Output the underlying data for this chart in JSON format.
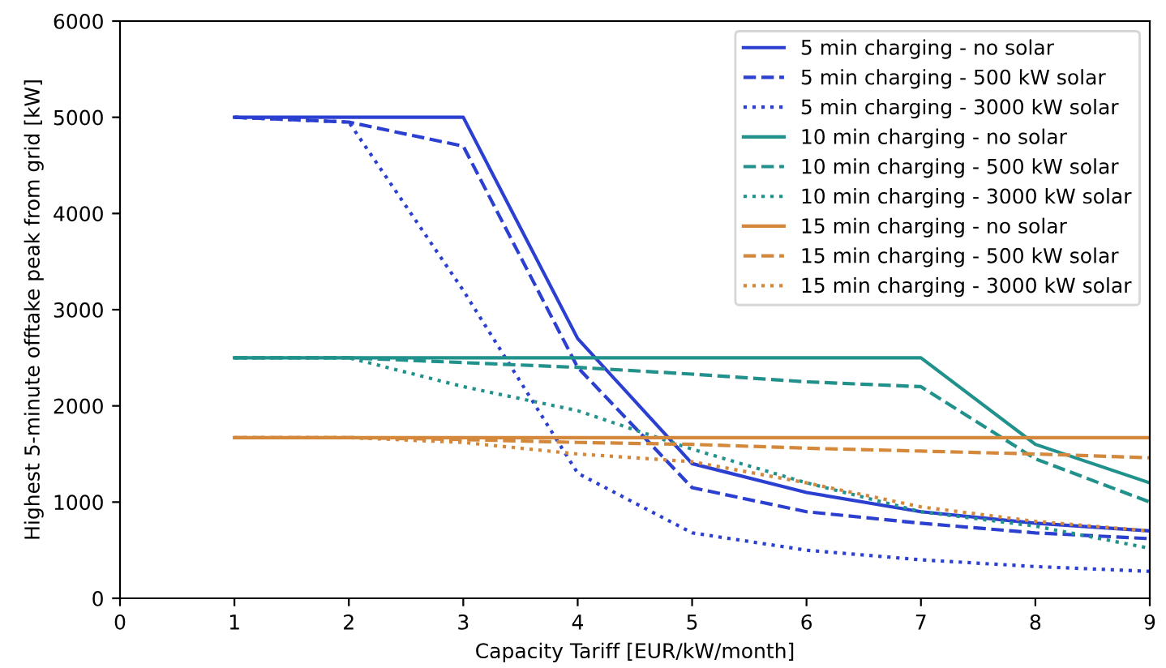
{
  "chart_data": {
    "type": "line",
    "xlabel": "Capacity Tariff [EUR/kW/month]",
    "ylabel": "Highest 5-minute offtake peak from grid [kW]",
    "x": [
      1,
      2,
      3,
      4,
      5,
      6,
      7,
      8,
      9
    ],
    "series": [
      {
        "name": "5 min charging - no solar",
        "color": "#2b3fd0",
        "line_style": "solid",
        "values": [
          5000,
          5000,
          5000,
          2700,
          1400,
          1100,
          900,
          780,
          700
        ]
      },
      {
        "name": "5 min charging - 500 kW solar",
        "color": "#2b3fd0",
        "line_style": "dashed",
        "values": [
          5000,
          4950,
          4700,
          2400,
          1150,
          900,
          780,
          680,
          620
        ]
      },
      {
        "name": "5 min charging - 3000 kW solar",
        "color": "#2b3fd0",
        "line_style": "dotted",
        "values": [
          5000,
          4950,
          3200,
          1300,
          680,
          500,
          400,
          330,
          280
        ]
      },
      {
        "name": "10 min charging - no solar",
        "color": "#21918c",
        "line_style": "solid",
        "values": [
          2500,
          2500,
          2500,
          2500,
          2500,
          2500,
          2500,
          1600,
          1200
        ]
      },
      {
        "name": "10 min charging - 500 kW solar",
        "color": "#21918c",
        "line_style": "dashed",
        "values": [
          2500,
          2500,
          2450,
          2400,
          2330,
          2250,
          2200,
          1450,
          1000
        ]
      },
      {
        "name": "10 min charging - 3000 kW solar",
        "color": "#21918c",
        "line_style": "dotted",
        "values": [
          2500,
          2500,
          2200,
          1950,
          1550,
          1200,
          900,
          750,
          520
        ]
      },
      {
        "name": "15 min charging - no solar",
        "color": "#d4883c",
        "line_style": "solid",
        "values": [
          1670,
          1670,
          1670,
          1670,
          1670,
          1670,
          1670,
          1670,
          1670
        ]
      },
      {
        "name": "15 min charging - 500 kW solar",
        "color": "#d4883c",
        "line_style": "dashed",
        "values": [
          1670,
          1670,
          1650,
          1620,
          1600,
          1560,
          1530,
          1500,
          1460
        ]
      },
      {
        "name": "15 min charging - 3000 kW solar",
        "color": "#d4883c",
        "line_style": "dotted",
        "values": [
          1670,
          1670,
          1620,
          1500,
          1420,
          1200,
          950,
          800,
          700
        ]
      }
    ],
    "xlim": [
      0,
      9
    ],
    "xticks": [
      0,
      1,
      2,
      3,
      4,
      5,
      6,
      7,
      8,
      9
    ],
    "ylim": [
      0,
      6000
    ],
    "yticks": [
      0,
      1000,
      2000,
      3000,
      4000,
      5000,
      6000
    ],
    "legend": "top right"
  }
}
